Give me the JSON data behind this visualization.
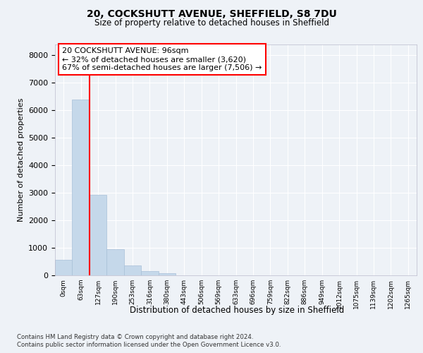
{
  "title1": "20, COCKSHUTT AVENUE, SHEFFIELD, S8 7DU",
  "title2": "Size of property relative to detached houses in Sheffield",
  "xlabel": "Distribution of detached houses by size in Sheffield",
  "ylabel": "Number of detached properties",
  "bar_labels": [
    "0sqm",
    "63sqm",
    "127sqm",
    "190sqm",
    "253sqm",
    "316sqm",
    "380sqm",
    "443sqm",
    "506sqm",
    "569sqm",
    "633sqm",
    "696sqm",
    "759sqm",
    "822sqm",
    "886sqm",
    "949sqm",
    "1012sqm",
    "1075sqm",
    "1139sqm",
    "1202sqm",
    "1265sqm"
  ],
  "bar_values": [
    560,
    6380,
    2920,
    960,
    360,
    150,
    80,
    0,
    0,
    0,
    0,
    0,
    0,
    0,
    0,
    0,
    0,
    0,
    0,
    0,
    0
  ],
  "bar_color": "#c5d8ea",
  "bar_edgecolor": "#a8c0d8",
  "ylim": [
    0,
    8400
  ],
  "yticks": [
    0,
    1000,
    2000,
    3000,
    4000,
    5000,
    6000,
    7000,
    8000
  ],
  "red_line_x": 1.5,
  "annotation_line1": "20 COCKSHUTT AVENUE: 96sqm",
  "annotation_line2": "← 32% of detached houses are smaller (3,620)",
  "annotation_line3": "67% of semi-detached houses are larger (7,506) →",
  "footer_line1": "Contains HM Land Registry data © Crown copyright and database right 2024.",
  "footer_line2": "Contains public sector information licensed under the Open Government Licence v3.0.",
  "bg_color": "#eef2f7",
  "grid_color": "#ffffff"
}
